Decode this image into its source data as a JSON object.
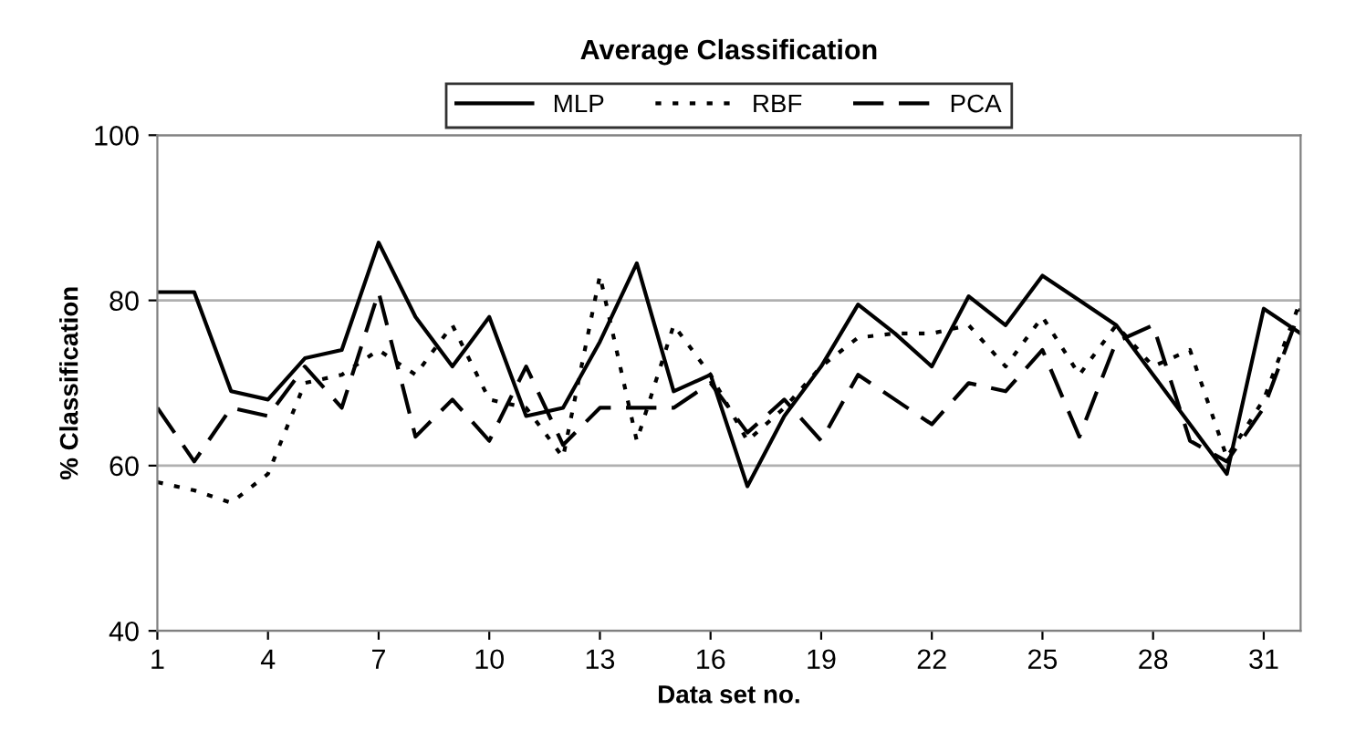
{
  "chart_data": {
    "type": "line",
    "title": "Average Classification",
    "xlabel": "Data set no.",
    "ylabel": "% Classification",
    "x": [
      1,
      2,
      3,
      4,
      5,
      6,
      7,
      8,
      9,
      10,
      11,
      12,
      13,
      14,
      15,
      16,
      17,
      18,
      19,
      20,
      21,
      22,
      23,
      24,
      25,
      26,
      27,
      28,
      29,
      30,
      31,
      32
    ],
    "series": [
      {
        "name": "MLP",
        "color": "#000000",
        "line_style": "solid",
        "values": [
          81,
          81,
          69,
          68,
          73,
          74,
          87,
          78,
          72,
          78,
          66,
          67,
          75,
          84.5,
          69,
          71,
          57.5,
          66,
          72,
          79.5,
          76,
          72,
          80.5,
          77,
          83,
          80,
          77,
          71,
          65,
          59,
          79,
          76
        ]
      },
      {
        "name": "RBF",
        "color": "#000000",
        "line_style": "dotted",
        "values": [
          58,
          57,
          55.5,
          59,
          70,
          71,
          74,
          71,
          77,
          68,
          67,
          61,
          83,
          63,
          77,
          71,
          63,
          67,
          72,
          75.5,
          76,
          76,
          77,
          72,
          78,
          71,
          77,
          72,
          74,
          61,
          68,
          80
        ]
      },
      {
        "name": "PCA",
        "color": "#000000",
        "line_style": "dashed",
        "values": [
          67,
          60.5,
          67,
          66,
          72,
          67,
          81,
          63.5,
          68,
          63,
          72,
          62.5,
          67,
          67,
          67,
          70,
          64,
          68,
          63,
          71,
          68,
          65,
          70,
          69,
          74,
          63.5,
          75,
          77,
          63,
          60.5,
          67,
          79
        ]
      }
    ],
    "xlim": [
      1,
      32
    ],
    "xticks": [
      1,
      4,
      7,
      10,
      13,
      16,
      19,
      22,
      25,
      28,
      31
    ],
    "ylim": [
      40,
      100
    ],
    "yticks": [
      40,
      60,
      80,
      100
    ],
    "grid": "y",
    "legend": "top",
    "marker": "none"
  }
}
